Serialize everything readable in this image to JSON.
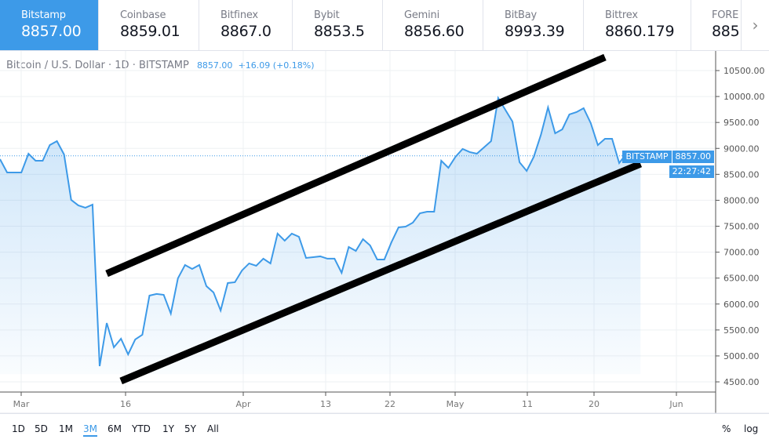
{
  "exchanges": [
    {
      "name": "Bitstamp",
      "price": "8857.00",
      "active": true
    },
    {
      "name": "Coinbase",
      "price": "8859.01"
    },
    {
      "name": "Bitfinex",
      "price": "8867.0"
    },
    {
      "name": "Bybit",
      "price": "8853.5"
    },
    {
      "name": "Gemini",
      "price": "8856.60"
    },
    {
      "name": "BitBay",
      "price": "8993.39"
    },
    {
      "name": "Bittrex",
      "price": "8860.179"
    },
    {
      "name": "FORE",
      "price": "885"
    }
  ],
  "more_icon": "chevron-right-icon",
  "legend": {
    "symbol": "Bitcoin / U.S. Dollar · 1D · BITSTAMP",
    "last": "8857.00",
    "change": "+16.09 (+0.18%)"
  },
  "price_badge": {
    "exchange": "BITSTAMP",
    "price": "8857.00",
    "countdown": "22:27:42"
  },
  "ranges": [
    "1D",
    "5D",
    "1M",
    "3M",
    "6M",
    "YTD",
    "1Y",
    "5Y",
    "All"
  ],
  "selected_range": "3M",
  "right_buttons": {
    "percent": "%",
    "log": "log"
  },
  "colors": {
    "accent": "#3d9ae8",
    "line": "#3d9ae8",
    "trendline": "#000000"
  },
  "chart_data": {
    "type": "area",
    "y_ticks": [
      "4500.00",
      "5000.00",
      "5500.00",
      "6000.00",
      "6500.00",
      "7000.00",
      "7500.00",
      "8000.00",
      "8500.00",
      "9000.00",
      "9500.00",
      "10000.00",
      "10500.00"
    ],
    "ylim": [
      4500,
      10500
    ],
    "x_ticks": [
      "Mar",
      "16",
      "Apr",
      "13",
      "22",
      "May",
      "11",
      "20",
      "Jun"
    ],
    "grid": true,
    "series": [
      {
        "dates": [
          "02-26",
          "02-27",
          "02-28",
          "02-29",
          "03-01",
          "03-02",
          "03-03",
          "03-04",
          "03-05",
          "03-06",
          "03-07",
          "03-08",
          "03-09",
          "03-10",
          "03-11",
          "03-12",
          "03-13",
          "03-14",
          "03-15",
          "03-16",
          "03-17",
          "03-18",
          "03-19",
          "03-20",
          "03-21",
          "03-22",
          "03-23",
          "03-24",
          "03-25",
          "03-26",
          "03-27",
          "03-28",
          "03-29",
          "03-30",
          "03-31",
          "04-01",
          "04-02",
          "04-03",
          "04-04",
          "04-05",
          "04-06",
          "04-07",
          "04-08",
          "04-09",
          "04-10",
          "04-11",
          "04-12",
          "04-13",
          "04-14",
          "04-15",
          "04-16",
          "04-17",
          "04-18",
          "04-19",
          "04-20",
          "04-21",
          "04-22",
          "04-23",
          "04-24",
          "04-25",
          "04-26",
          "04-27",
          "04-28",
          "04-29",
          "04-30",
          "05-01",
          "05-02",
          "05-03",
          "05-04",
          "05-05",
          "05-06",
          "05-07",
          "05-08",
          "05-09",
          "05-10",
          "05-11",
          "05-12",
          "05-13",
          "05-14",
          "05-15",
          "05-16",
          "05-17",
          "05-18",
          "05-19",
          "05-20",
          "05-21",
          "05-22",
          "05-23",
          "05-24",
          "05-25",
          "05-26"
        ],
        "values": [
          8793,
          8536,
          8536,
          8536,
          8898,
          8762,
          8762,
          9064,
          9140,
          8883,
          8007,
          7901,
          7856,
          7916,
          4804,
          5634,
          5166,
          5332,
          5030,
          5317,
          5408,
          6163,
          6194,
          6178,
          5816,
          6496,
          6753,
          6677,
          6753,
          6345,
          6224,
          5876,
          6405,
          6420,
          6647,
          6783,
          6738,
          6874,
          6783,
          7357,
          7221,
          7357,
          7297,
          6889,
          6904,
          6919,
          6874,
          6874,
          6602,
          7100,
          7024,
          7251,
          7130,
          6858,
          6858,
          7191,
          7478,
          7493,
          7569,
          7750,
          7780,
          7780,
          8762,
          8626,
          8838,
          8989,
          8929,
          8898,
          9019,
          9140,
          9971,
          9745,
          9518,
          8732,
          8566,
          8838,
          9261,
          9790,
          9291,
          9367,
          9654,
          9699,
          9775,
          9488,
          9064,
          9185,
          9185,
          8717,
          8898,
          8823,
          8857
        ]
      }
    ],
    "last_price": 8857.0,
    "trendlines": [
      {
        "from": [
          "03-12",
          6586
        ],
        "to": [
          "05-21",
          10757
        ]
      },
      {
        "from": [
          "03-14",
          4516
        ],
        "to": [
          "05-26",
          8702
        ]
      }
    ]
  }
}
